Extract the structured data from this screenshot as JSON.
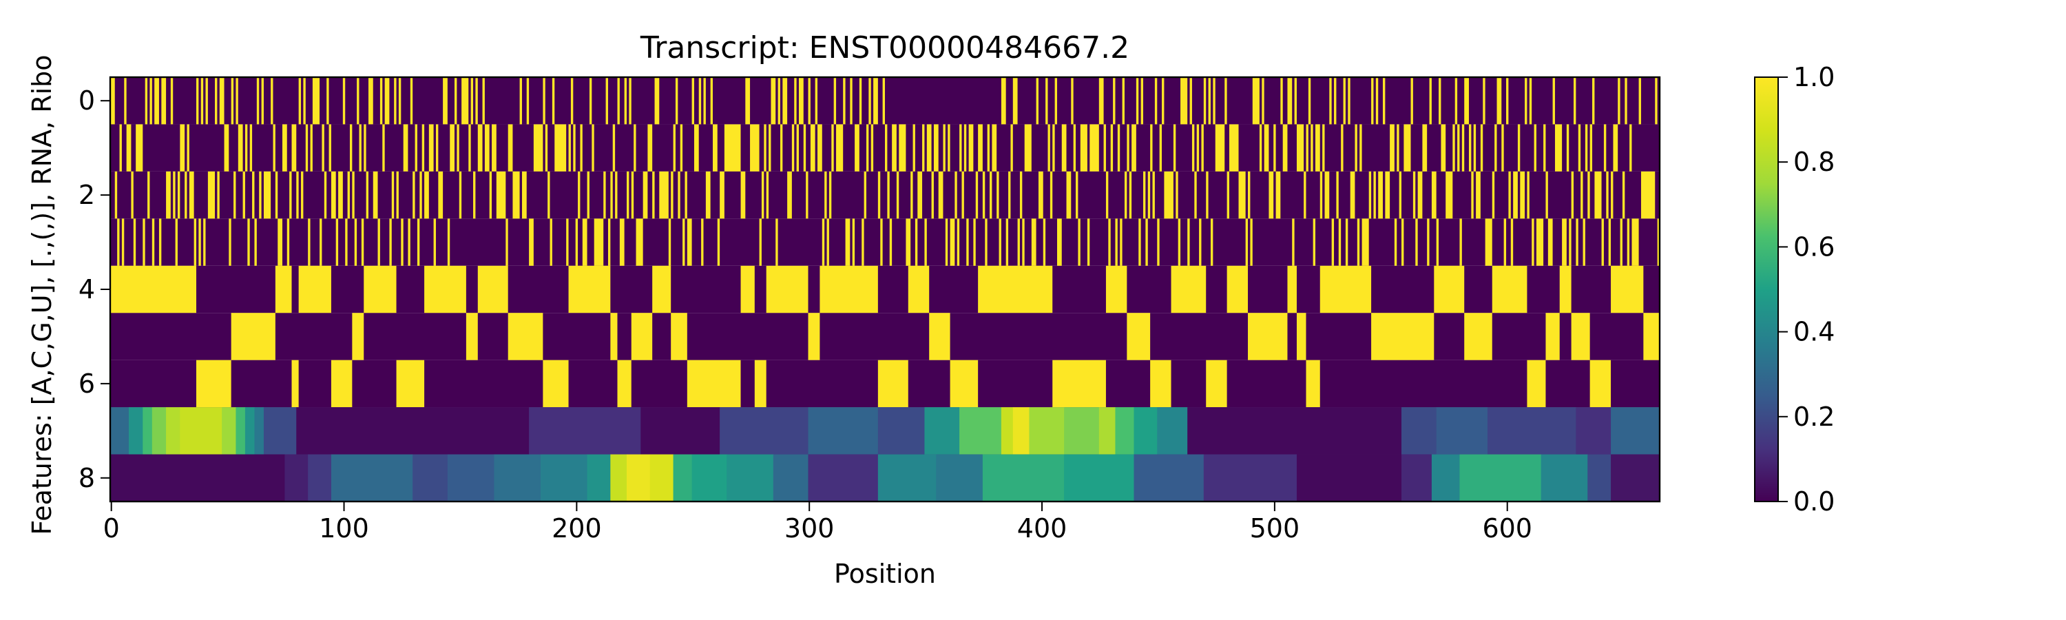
{
  "chart_data": {
    "type": "heatmap",
    "title": "Transcript: ENST00000484667.2",
    "xlabel": "Position",
    "ylabel": "Features: [A,C,G,U], [.,(,)], RNA, Ribo",
    "x_range": [
      0,
      666
    ],
    "y_range": [
      0,
      8
    ],
    "x_ticks": [
      0,
      100,
      200,
      300,
      400,
      500,
      600
    ],
    "y_ticks": [
      0,
      2,
      4,
      6,
      8
    ],
    "colormap": "viridis",
    "colorbar": {
      "range": [
        0,
        1
      ],
      "ticks": [
        "0.0",
        "0.2",
        "0.4",
        "0.6",
        "0.8",
        "1.0"
      ]
    },
    "grid": false,
    "rows": {
      "one_hot_rows": [
        0,
        1,
        2,
        3,
        4,
        5,
        6
      ],
      "continuous_rows": [
        {
          "row": 7,
          "segments": [
            [
              0,
              8,
              0.3
            ],
            [
              8,
              14,
              0.45
            ],
            [
              14,
              18,
              0.6
            ],
            [
              18,
              24,
              0.7
            ],
            [
              24,
              30,
              0.8
            ],
            [
              30,
              48,
              0.85
            ],
            [
              48,
              54,
              0.75
            ],
            [
              54,
              58,
              0.6
            ],
            [
              58,
              62,
              0.45
            ],
            [
              62,
              66,
              0.35
            ],
            [
              66,
              80,
              0.2
            ],
            [
              80,
              180,
              0.02
            ],
            [
              180,
              228,
              0.12
            ],
            [
              228,
              262,
              0.02
            ],
            [
              262,
              300,
              0.18
            ],
            [
              300,
              330,
              0.28
            ],
            [
              330,
              350,
              0.2
            ],
            [
              350,
              365,
              0.45
            ],
            [
              365,
              383,
              0.65
            ],
            [
              383,
              388,
              0.85
            ],
            [
              388,
              395,
              0.95
            ],
            [
              395,
              410,
              0.75
            ],
            [
              410,
              425,
              0.7
            ],
            [
              425,
              432,
              0.78
            ],
            [
              432,
              440,
              0.62
            ],
            [
              440,
              450,
              0.5
            ],
            [
              450,
              463,
              0.4
            ],
            [
              463,
              555,
              0.02
            ],
            [
              555,
              570,
              0.2
            ],
            [
              570,
              592,
              0.25
            ],
            [
              592,
              630,
              0.18
            ],
            [
              630,
              645,
              0.12
            ],
            [
              645,
              666,
              0.28
            ]
          ]
        },
        {
          "row": 8,
          "segments": [
            [
              0,
              75,
              0.02
            ],
            [
              75,
              85,
              0.08
            ],
            [
              85,
              95,
              0.15
            ],
            [
              95,
              130,
              0.3
            ],
            [
              130,
              145,
              0.2
            ],
            [
              145,
              165,
              0.25
            ],
            [
              165,
              185,
              0.32
            ],
            [
              185,
              205,
              0.38
            ],
            [
              205,
              215,
              0.45
            ],
            [
              215,
              222,
              0.85
            ],
            [
              222,
              232,
              0.95
            ],
            [
              232,
              242,
              0.9
            ],
            [
              242,
              250,
              0.55
            ],
            [
              250,
              265,
              0.5
            ],
            [
              265,
              285,
              0.45
            ],
            [
              285,
              300,
              0.3
            ],
            [
              300,
              330,
              0.12
            ],
            [
              330,
              355,
              0.4
            ],
            [
              355,
              375,
              0.35
            ],
            [
              375,
              410,
              0.55
            ],
            [
              410,
              440,
              0.5
            ],
            [
              440,
              470,
              0.25
            ],
            [
              470,
              510,
              0.12
            ],
            [
              510,
              555,
              0.02
            ],
            [
              555,
              568,
              0.1
            ],
            [
              568,
              580,
              0.4
            ],
            [
              580,
              615,
              0.55
            ],
            [
              615,
              635,
              0.4
            ],
            [
              635,
              645,
              0.2
            ],
            [
              645,
              666,
              0.05
            ]
          ]
        }
      ]
    }
  }
}
